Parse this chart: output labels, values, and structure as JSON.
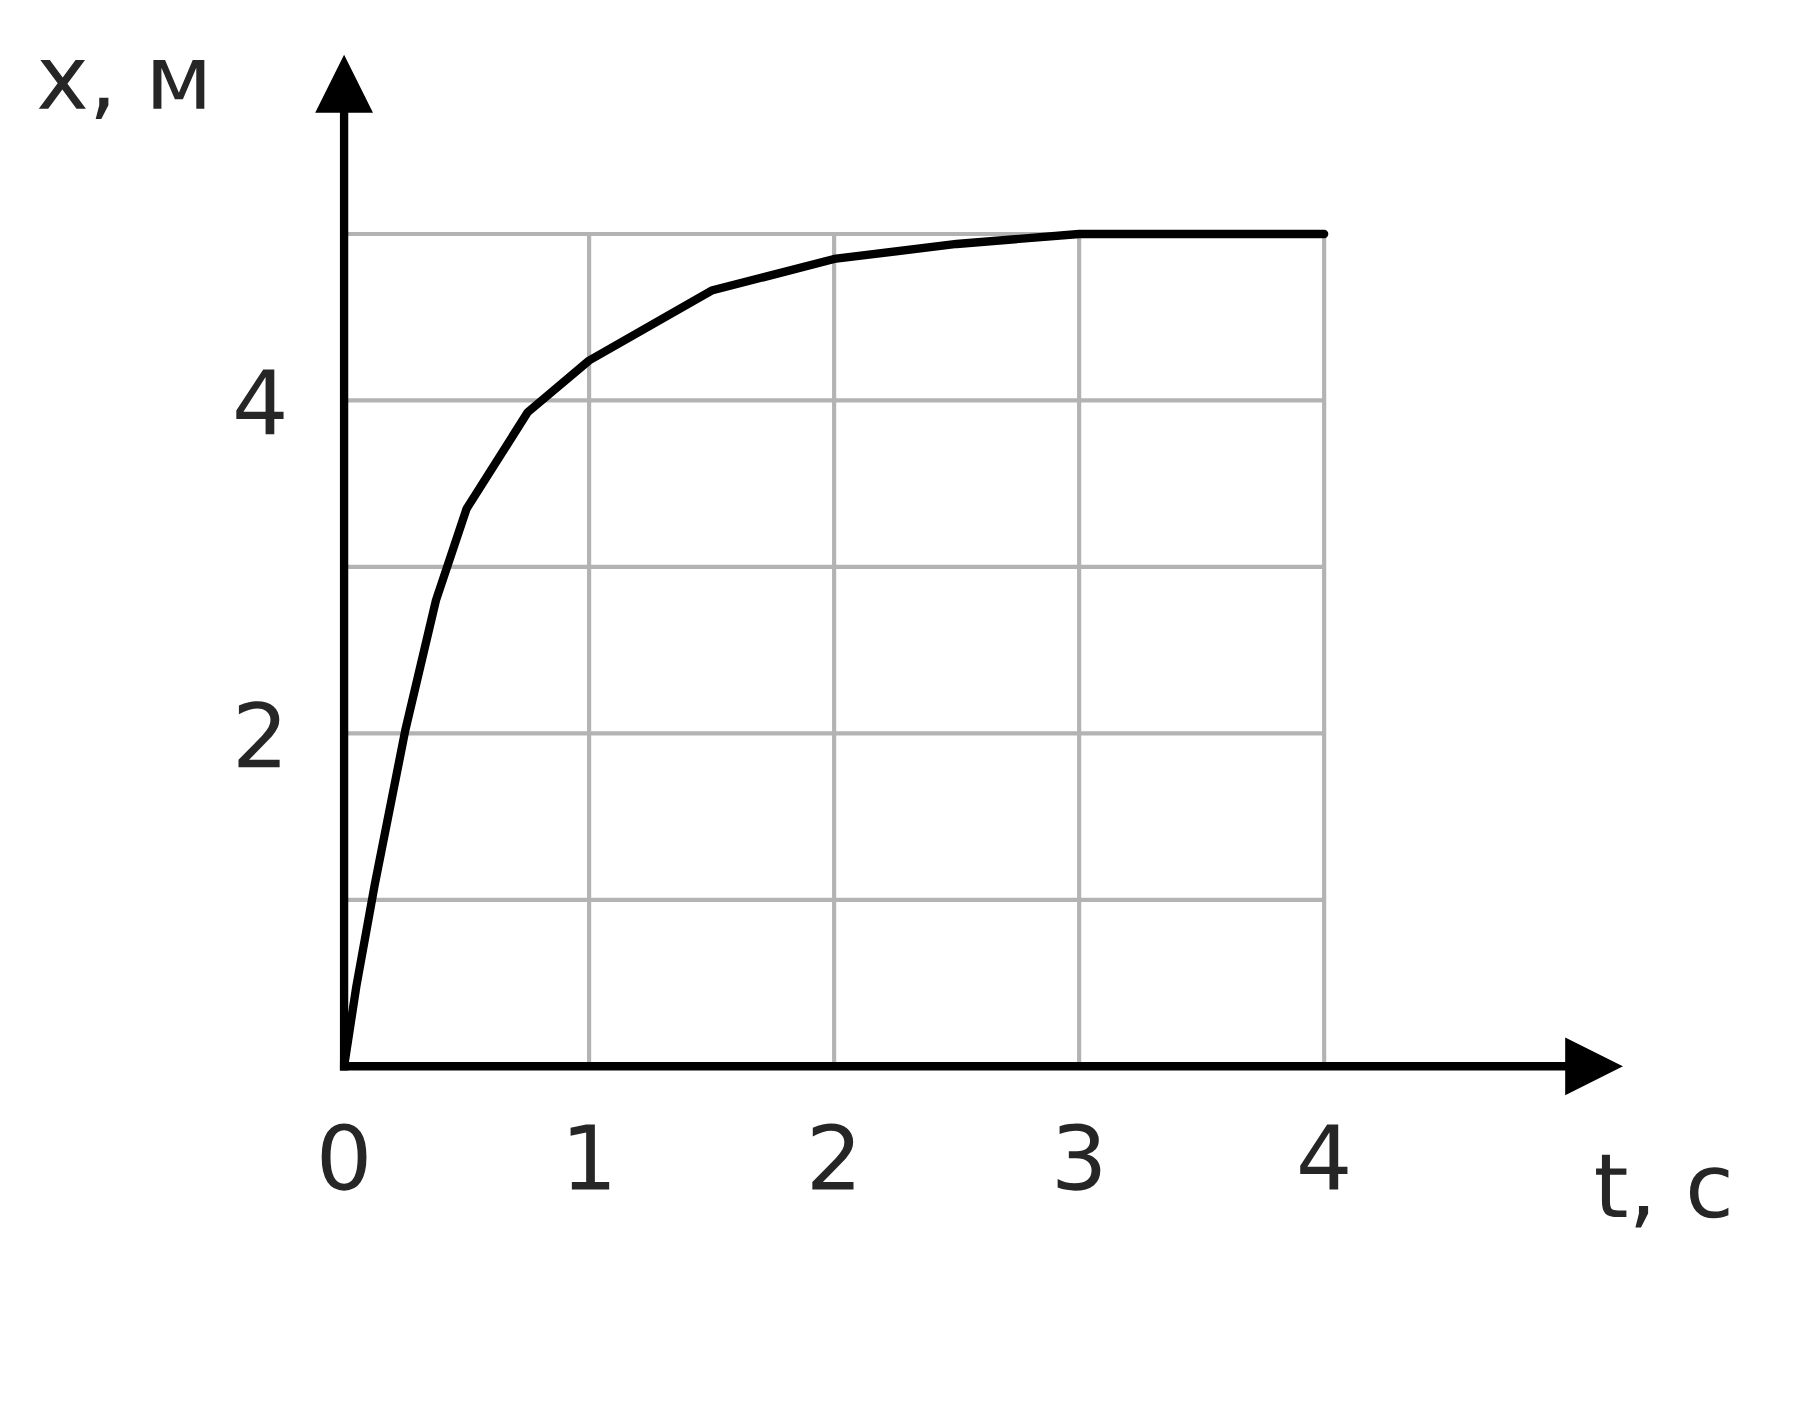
{
  "chart_data": {
    "type": "line",
    "xlabel": "t, с",
    "ylabel": "x, м",
    "series": [
      {
        "color": "#000000",
        "x": [
          0,
          0.05,
          0.125,
          0.25,
          0.375,
          0.5,
          0.75,
          1,
          1.5,
          2,
          2.5,
          3,
          4
        ],
        "values": [
          0,
          0.48,
          1.09,
          2.02,
          2.8,
          3.35,
          3.93,
          4.24,
          4.66,
          4.85,
          4.94,
          5,
          5
        ]
      }
    ],
    "xlim": [
      0,
      5.1
    ],
    "ylim": [
      0,
      5.9
    ],
    "xticks": [
      0,
      1,
      2,
      3,
      4
    ],
    "yticks": [
      {
        "value": 1,
        "label": null
      },
      2,
      {
        "value": 3,
        "label": null
      },
      4,
      {
        "value": 5,
        "label": null
      }
    ],
    "grid": true,
    "marker": "none",
    "line_style": "solid"
  }
}
